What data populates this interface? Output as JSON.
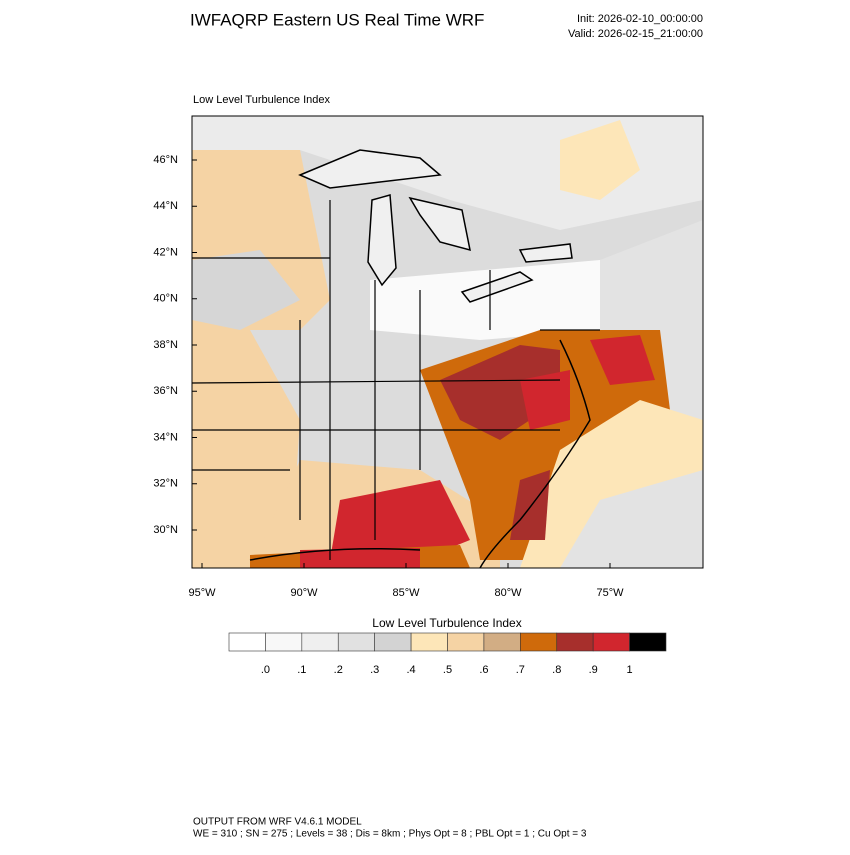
{
  "header": {
    "title": "IWFAQRP Eastern US Real Time WRF",
    "init": "Init: 2026-02-10_00:00:00",
    "valid": "Valid: 2026-02-15_21:00:00"
  },
  "map": {
    "label": "Low Level Turbulence Index",
    "lat_labels": [
      "46°N",
      "44°N",
      "42°N",
      "40°N",
      "38°N",
      "36°N",
      "34°N",
      "32°N",
      "30°N"
    ],
    "lon_labels": [
      "95°W",
      "90°W",
      "85°W",
      "80°W",
      "75°W"
    ]
  },
  "colorbar": {
    "title": "Low Level Turbulence Index",
    "colors": [
      "#ffffff",
      "#f8f8f8",
      "#efefef",
      "#e1e1e1",
      "#d3d3d3",
      "#fde6b8",
      "#f5d3a4",
      "#d2ad84",
      "#cf6a0b",
      "#a72f2c",
      "#d1262e",
      "#000000"
    ],
    "labels": [
      ".0",
      ".1",
      ".2",
      ".3",
      ".4",
      ".5",
      ".6",
      ".7",
      ".8",
      ".9",
      "1"
    ]
  },
  "footer": {
    "line1": "OUTPUT FROM WRF V4.6.1 MODEL",
    "line2": "WE = 310 ; SN = 275 ; Levels = 38 ; Dis = 8km ; Phys Opt = 8 ; PBL Opt = 1 ; Cu Opt = 3"
  }
}
